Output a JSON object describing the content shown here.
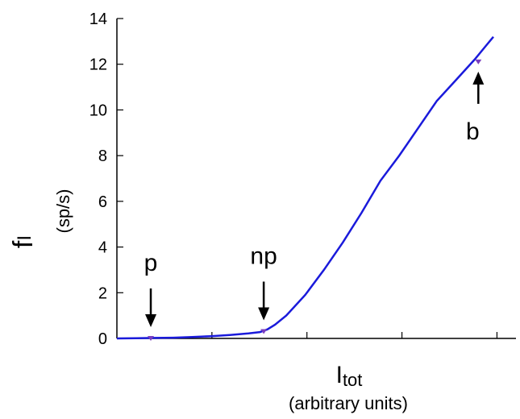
{
  "chart_data": {
    "type": "line",
    "x_label_main": "I",
    "x_label_sub": "tot",
    "x_label_units": "(arbitrary units)",
    "y_label_main": "f",
    "y_label_sub": "I",
    "y_label_units": "(sp/s)",
    "ylim": [
      0,
      14
    ],
    "y_ticks": [
      "0",
      "2",
      "4",
      "6",
      "8",
      "10",
      "12",
      "14"
    ],
    "x_tick_count": 4,
    "grid": false,
    "line_color": "#1a1adb",
    "series": [
      {
        "x": [
          0,
          0.05,
          0.1,
          0.15,
          0.2,
          0.25,
          0.3,
          0.35,
          0.38,
          0.4,
          0.42,
          0.45,
          0.5,
          0.55,
          0.6,
          0.65,
          0.7,
          0.75,
          0.8,
          0.85,
          0.9,
          0.95,
          0.98,
          1.0
        ],
        "y": [
          0.0,
          0.01,
          0.02,
          0.03,
          0.06,
          0.1,
          0.15,
          0.22,
          0.28,
          0.4,
          0.6,
          1.0,
          1.9,
          3.0,
          4.2,
          5.5,
          6.9,
          8.0,
          9.2,
          10.4,
          11.3,
          12.2,
          12.8,
          13.2
        ]
      }
    ],
    "markers": [
      {
        "label": "p",
        "x": 0.09,
        "y": 0.0,
        "arrow": "down"
      },
      {
        "label": "np",
        "x": 0.39,
        "y": 0.3,
        "arrow": "down"
      },
      {
        "label": "b",
        "x": 0.96,
        "y": 12.1,
        "arrow": "up"
      }
    ]
  }
}
